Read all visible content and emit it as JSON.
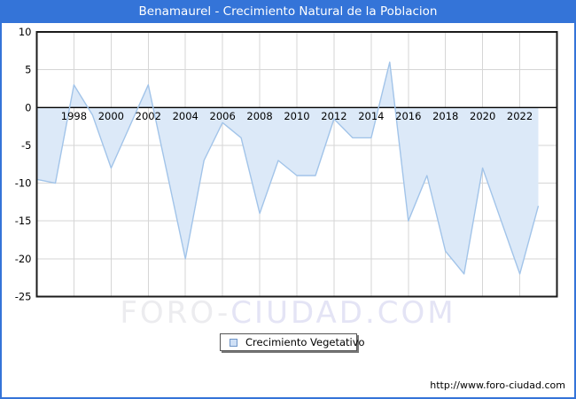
{
  "window": {
    "title": "Benamaurel - Crecimiento Natural de la Poblacion"
  },
  "colors": {
    "frame_blue": "#3474d8",
    "title_text": "#ffffff",
    "area_fill": "#dce9f8",
    "line": "#a2c4e9",
    "grid": "#d6d6d6",
    "zero_line": "#000000",
    "plot_border": "#1b1b1b",
    "tick_text": "#000000",
    "legend_swatch_fill": "#cfe0f6",
    "legend_swatch_border": "#7096c8"
  },
  "chart_data": {
    "type": "area",
    "title": "Benamaurel - Crecimiento Natural de la Poblacion",
    "xlabel": "",
    "ylabel": "",
    "series_name": "Crecimiento Vegetativo",
    "baseline": 0,
    "grid": true,
    "legend_position": "bottom-center",
    "xlim": [
      1996,
      2024
    ],
    "ylim": [
      -25,
      10
    ],
    "yticks": [
      10,
      5,
      0,
      -5,
      -10,
      -15,
      -20,
      -25
    ],
    "xticks": [
      1998,
      2000,
      2002,
      2004,
      2006,
      2008,
      2010,
      2012,
      2014,
      2016,
      2018,
      2020,
      2022
    ],
    "x": [
      1996,
      1997,
      1998,
      1999,
      2000,
      2001,
      2002,
      2003,
      2004,
      2005,
      2006,
      2007,
      2008,
      2009,
      2010,
      2011,
      2012,
      2013,
      2014,
      2015,
      2016,
      2017,
      2018,
      2019,
      2020,
      2021,
      2022,
      2023
    ],
    "values": [
      -9.5,
      -10,
      3,
      -1,
      -8,
      -2.5,
      3,
      -8.5,
      -20,
      -7,
      -2,
      -4,
      -14,
      -7,
      -9,
      -9,
      -1.5,
      -4,
      -4,
      6,
      -15,
      -9,
      -19,
      -22,
      -8,
      -15,
      -22,
      -13
    ]
  },
  "legend": {
    "label": "Crecimiento Vegetativo"
  },
  "watermark": {
    "part1": "FORO-",
    "part2": "CIUDAD.COM"
  },
  "footer": {
    "url": "http://www.foro-ciudad.com"
  }
}
